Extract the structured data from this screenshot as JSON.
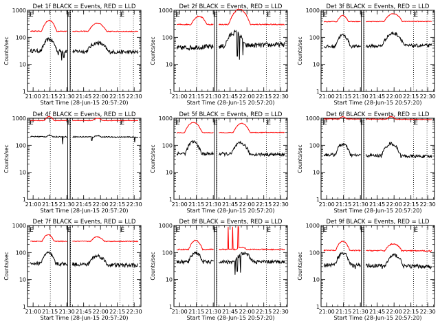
{
  "chart_data": {
    "type": "line",
    "y_scale": "log",
    "ylim": [
      1,
      1000
    ],
    "ylabel": "Counts/sec",
    "xlabel": "Start Time (28-Jun-15 20:57:20)",
    "x_range_minutes": [
      -2.33,
      98.67
    ],
    "x_ticks": [
      {
        "t": 2.67,
        "label": "21:00"
      },
      {
        "t": 17.67,
        "label": "21:15"
      },
      {
        "t": 32.67,
        "label": "21:30"
      },
      {
        "t": 47.67,
        "label": "21:45"
      },
      {
        "t": 62.67,
        "label": "22:00"
      },
      {
        "t": 77.67,
        "label": "22:15"
      },
      {
        "t": 92.67,
        "label": "22:30"
      }
    ],
    "y_ticks": [
      {
        "v": 1,
        "label": "1"
      },
      {
        "v": 10,
        "label": "10"
      },
      {
        "v": 100,
        "label": "100"
      },
      {
        "v": 1000,
        "label": "1000"
      }
    ],
    "vertical_markers_minutes": [
      18,
      36,
      80,
      92
    ],
    "flag_markers": [
      {
        "t": -0.5,
        "label": "E"
      },
      {
        "t": 33,
        "label": "E"
      },
      {
        "t": 80.5,
        "label": "E"
      }
    ],
    "series_colors": {
      "events": "#000000",
      "lld": "#ff0000"
    },
    "panels": [
      {
        "title": "Det 1f BLACK = Events, RED = LLD",
        "events": {
          "base": 32,
          "p1": [
            17,
            85,
            5
          ],
          "p2": [
            60,
            62,
            8
          ],
          "end": 28,
          "jitter": 0.07
        },
        "lld": {
          "base": 170,
          "p1": [
            17,
            420,
            5
          ],
          "p2": [
            60,
            330,
            7
          ],
          "end": 165,
          "jitter": 0.015
        }
      },
      {
        "title": "Det 2f BLACK = Events, RED = LLD",
        "events": {
          "base": 40,
          "p1": [
            18,
            45,
            5
          ],
          "p2": [
            52,
            150,
            6
          ],
          "end": 55,
          "jitter": 0.09
        },
        "lld": {
          "base": 300,
          "p1": [
            20,
            600,
            6
          ],
          "p2": [
            56,
            1100,
            6
          ],
          "end": 300,
          "jitter": 0.02
        }
      },
      {
        "title": "Det 3f BLACK = Events, RED = LLD",
        "events": {
          "base": 45,
          "p1": [
            17,
            120,
            5
          ],
          "p2": [
            62,
            140,
            7
          ],
          "end": 50,
          "jitter": 0.06
        },
        "lld": {
          "base": 380,
          "p1": [
            17,
            640,
            5
          ],
          "p2": [
            62,
            750,
            7
          ],
          "end": 390,
          "jitter": 0.012
        }
      },
      {
        "title": "Det 4f BLACK = Events, RED = LLD",
        "events": {
          "base": 210,
          "p1": [
            17,
            235,
            5
          ],
          "p2": [
            60,
            230,
            6
          ],
          "end": 200,
          "jitter": 0.02
        },
        "lld": {
          "base": 820,
          "p1": [
            17,
            1150,
            5
          ],
          "p2": [
            60,
            1000,
            7
          ],
          "end": 820,
          "jitter": 0.008
        }
      },
      {
        "title": "Det 5f BLACK = Events, RED = LLD",
        "events": {
          "base": 50,
          "p1": [
            15,
            135,
            5
          ],
          "p2": [
            57,
            120,
            6
          ],
          "end": 45,
          "jitter": 0.06
        },
        "lld": {
          "base": 290,
          "p1": [
            15,
            700,
            6
          ],
          "p2": [
            58,
            650,
            6
          ],
          "end": 300,
          "jitter": 0.012
        }
      },
      {
        "title": "Det 6f BLACK = Events, RED = LLD",
        "events": {
          "base": 45,
          "p1": [
            17,
            110,
            5
          ],
          "p2": [
            60,
            115,
            6
          ],
          "end": 38,
          "jitter": 0.06
        },
        "lld": {
          "base": 950,
          "p1": [
            17,
            1150,
            5
          ],
          "p2": [
            60,
            1150,
            6
          ],
          "end": 900,
          "jitter": 0.01
        }
      },
      {
        "title": "Det 7f BLACK = Events, RED = LLD",
        "events": {
          "base": 40,
          "p1": [
            16,
            95,
            5
          ],
          "p2": [
            60,
            75,
            7
          ],
          "end": 33,
          "jitter": 0.07
        },
        "lld": {
          "base": 260,
          "p1": [
            16,
            460,
            5
          ],
          "p2": [
            60,
            380,
            7
          ],
          "end": 260,
          "jitter": 0.015
        }
      },
      {
        "title": "Det 8f BLACK = Events, RED = LLD",
        "events": {
          "base": 45,
          "p1": [
            17,
            100,
            5
          ],
          "p2": [
            60,
            90,
            7
          ],
          "end": 45,
          "jitter": 0.07
        },
        "lld": {
          "base": 130,
          "p1": [
            17,
            280,
            5
          ],
          "p2": [
            58,
            160,
            7
          ],
          "end": 130,
          "jitter": 0.02
        }
      },
      {
        "title": "Det 9f BLACK = Events, RED = LLD",
        "events": {
          "base": 35,
          "p1": [
            17,
            95,
            5
          ],
          "p2": [
            63,
            80,
            6
          ],
          "end": 30,
          "jitter": 0.07
        },
        "lld": {
          "base": 120,
          "p1": [
            17,
            260,
            5
          ],
          "p2": [
            62,
            210,
            7
          ],
          "end": 115,
          "jitter": 0.02
        }
      }
    ]
  }
}
